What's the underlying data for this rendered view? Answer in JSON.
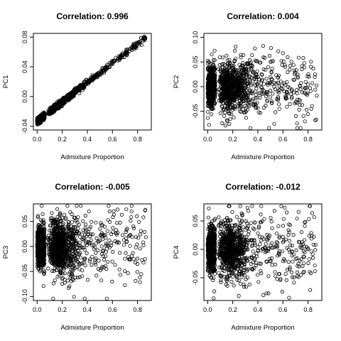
{
  "chart_data": [
    {
      "type": "scatter",
      "title": "Correlation: 0.996",
      "xlabel": "Admixture Proportion",
      "ylabel": "PC1",
      "xlim": [
        -0.03,
        0.91
      ],
      "ylim": [
        -0.045,
        0.085
      ],
      "xticks": [
        0.0,
        0.2,
        0.4,
        0.6,
        0.8
      ],
      "xtick_labels": [
        "0.0",
        "0.2",
        "0.4",
        "0.6",
        "0.8"
      ],
      "yticks": [
        -0.04,
        0.0,
        0.04,
        0.08
      ],
      "ytick_labels": [
        "-0.04",
        "0.00",
        "0.04",
        "0.08"
      ],
      "relationship": {
        "slope": 0.13,
        "intercept": -0.033,
        "noise_sd": 0.002
      },
      "n_points": 1500,
      "grid": false
    },
    {
      "type": "scatter",
      "title": "Correlation: 0.004",
      "xlabel": "Admixture Proportion",
      "ylabel": "PC2",
      "xlim": [
        -0.03,
        0.91
      ],
      "ylim": [
        -0.088,
        0.108
      ],
      "xticks": [
        0.0,
        0.2,
        0.4,
        0.6,
        0.8
      ],
      "xtick_labels": [
        "0.0",
        "0.2",
        "0.4",
        "0.6",
        "0.8"
      ],
      "yticks": [
        -0.05,
        0.0,
        0.05,
        0.1
      ],
      "ytick_labels": [
        "-0.05",
        "0.00",
        "0.05",
        "0.10"
      ],
      "relationship": {
        "slope": 0.0,
        "intercept": 0.0,
        "noise_sd": 0.025
      },
      "n_points": 1500,
      "grid": false
    },
    {
      "type": "scatter",
      "title": "Correlation: -0.005",
      "xlabel": "Admixture Proportion",
      "ylabel": "PC3",
      "xlim": [
        -0.03,
        0.91
      ],
      "ylim": [
        -0.108,
        0.085
      ],
      "xticks": [
        0.0,
        0.2,
        0.4,
        0.6,
        0.8
      ],
      "xtick_labels": [
        "0.0",
        "0.2",
        "0.4",
        "0.6",
        "0.8"
      ],
      "yticks": [
        -0.1,
        -0.05,
        0.0,
        0.05
      ],
      "ytick_labels": [
        "-0.10",
        "-0.05",
        "0.00",
        "0.05"
      ],
      "relationship": {
        "slope": 0.0,
        "intercept": 0.0,
        "noise_sd": 0.027
      },
      "n_points": 1500,
      "grid": false
    },
    {
      "type": "scatter",
      "title": "Correlation: -0.012",
      "xlabel": "Admixture Proportion",
      "ylabel": "PC4",
      "xlim": [
        -0.03,
        0.91
      ],
      "ylim": [
        -0.09,
        0.08
      ],
      "xticks": [
        0.0,
        0.2,
        0.4,
        0.6,
        0.8
      ],
      "xtick_labels": [
        "0.0",
        "0.2",
        "0.4",
        "0.6",
        "0.8"
      ],
      "yticks": [
        -0.05,
        0.0,
        0.05
      ],
      "ytick_labels": [
        "-0.05",
        "0.00",
        "0.05"
      ],
      "relationship": {
        "slope": 0.0,
        "intercept": 0.0,
        "noise_sd": 0.025
      },
      "n_points": 1500,
      "grid": false
    }
  ]
}
